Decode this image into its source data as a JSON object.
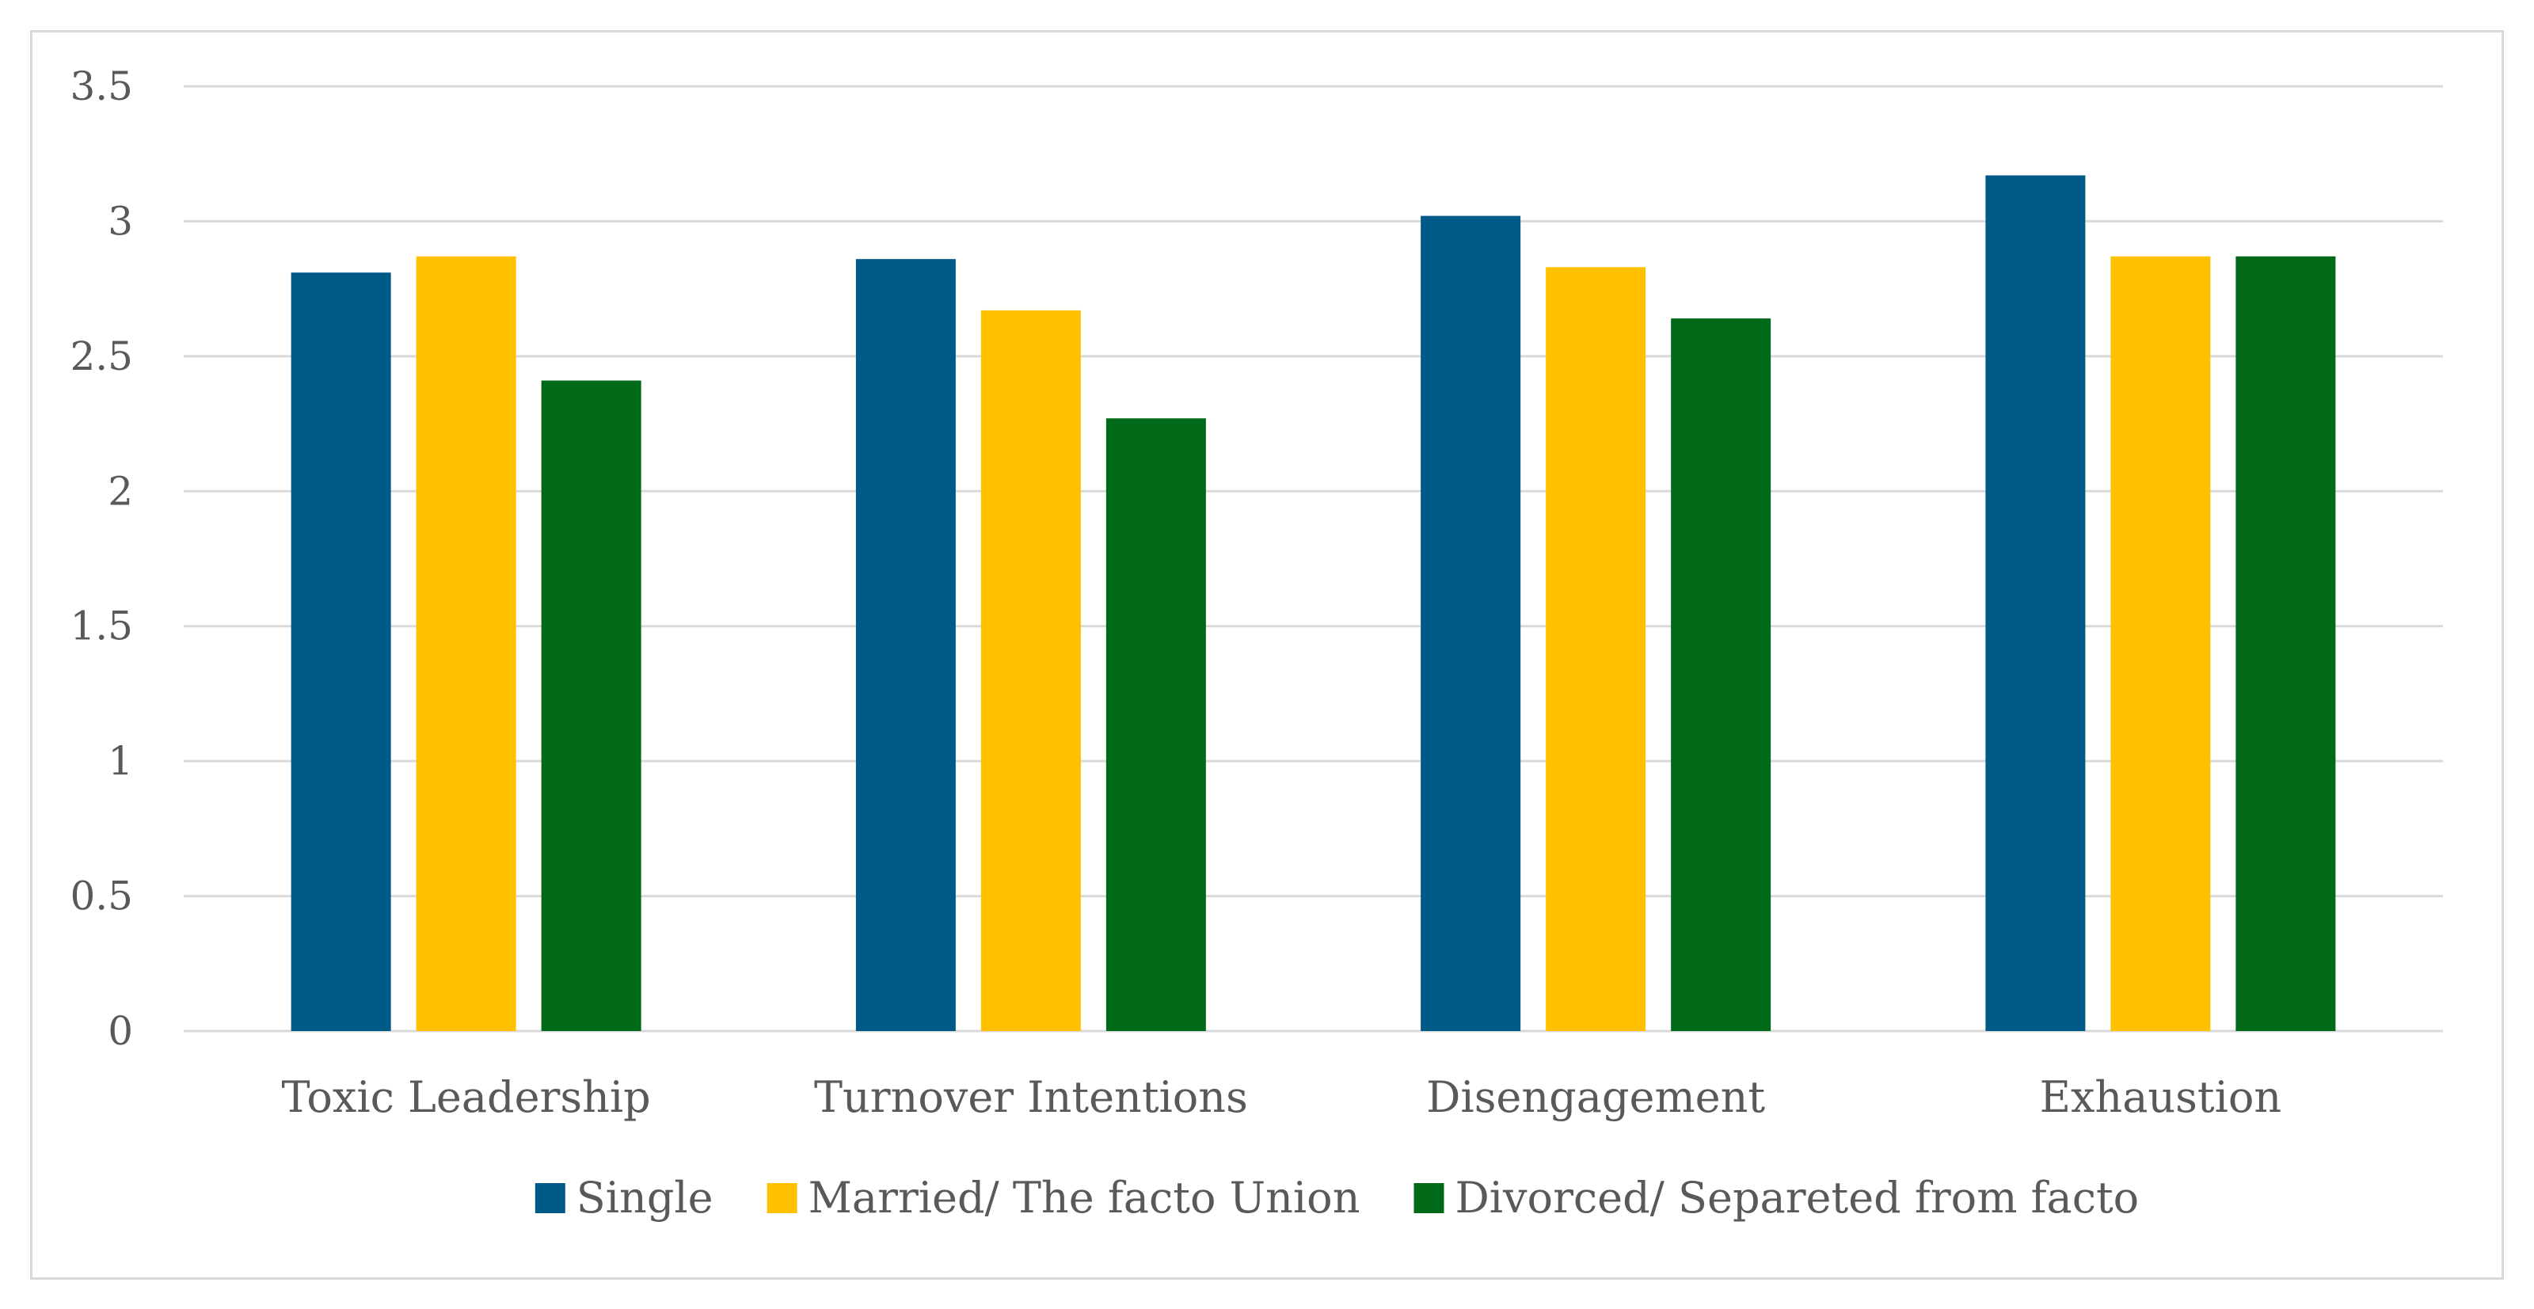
{
  "chart_data": {
    "type": "bar",
    "title": "",
    "xlabel": "",
    "ylabel": "",
    "categories": [
      "Toxic Leadership",
      "Turnover Intentions",
      "Disengagement",
      "Exhaustion"
    ],
    "series": [
      {
        "name": "Single",
        "color": "#005a87",
        "values": [
          2.81,
          2.86,
          3.02,
          3.17
        ]
      },
      {
        "name": "Married/ The facto Union",
        "color": "#ffc000",
        "values": [
          2.87,
          2.67,
          2.83,
          2.87
        ]
      },
      {
        "name": "Divorced/ Separeted from facto",
        "color": "#006a18",
        "values": [
          2.41,
          2.27,
          2.64,
          2.87
        ]
      }
    ],
    "ylim": [
      0,
      3.5
    ],
    "yticks": [
      "0",
      "0.5",
      "1",
      "1.5",
      "2",
      "2.5",
      "3",
      "3.5"
    ],
    "grid": true,
    "legend_position": "bottom"
  }
}
